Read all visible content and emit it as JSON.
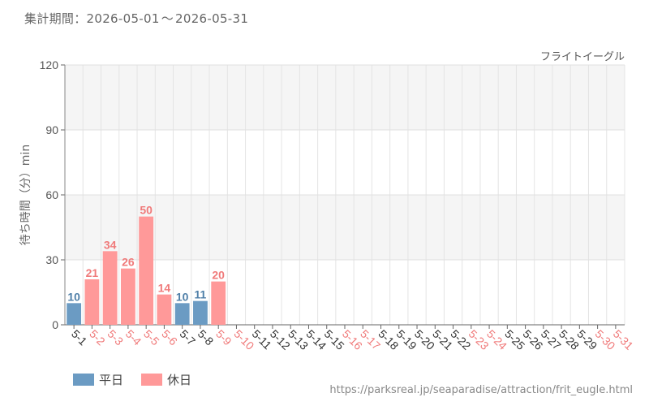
{
  "header": {
    "period_label": "集計期間",
    "separator": "：",
    "start_date": "2026-05-01",
    "range_mark": "〜",
    "end_date": "2026-05-31"
  },
  "legend": {
    "weekday_label": "平日",
    "holiday_label": "休日",
    "weekday_color": "#6b9bc3",
    "holiday_color": "#ff9999"
  },
  "source_url": "https://parksreal.jp/seaparadise/attraction/frit_eugle.html",
  "colors": {
    "weekday_bar": "#6b9bc3",
    "holiday_bar": "#ff9999",
    "weekday_text": "#333333",
    "holiday_text": "#f07a7a",
    "weekday_value": "#4f7fa8",
    "holiday_value": "#f07a7a",
    "band_shade": "#f5f5f5"
  },
  "chart_data": {
    "type": "bar",
    "title": "フライトイーグル",
    "xlabel": "",
    "ylabel": "待ち時間（分）min",
    "ylim": [
      0,
      120
    ],
    "yticks": [
      0,
      30,
      60,
      90,
      120
    ],
    "grid": true,
    "legend_position": "bottom-left",
    "categories": [
      "5-1",
      "5-2",
      "5-3",
      "5-4",
      "5-5",
      "5-6",
      "5-7",
      "5-8",
      "5-9",
      "5-10",
      "5-11",
      "5-12",
      "5-13",
      "5-14",
      "5-15",
      "5-16",
      "5-17",
      "5-18",
      "5-19",
      "5-20",
      "5-21",
      "5-22",
      "5-23",
      "5-24",
      "5-25",
      "5-26",
      "5-27",
      "5-28",
      "5-29",
      "5-30",
      "5-31"
    ],
    "day_type": [
      "weekday",
      "holiday",
      "holiday",
      "holiday",
      "holiday",
      "holiday",
      "weekday",
      "weekday",
      "holiday",
      "holiday",
      "weekday",
      "weekday",
      "weekday",
      "weekday",
      "weekday",
      "holiday",
      "holiday",
      "weekday",
      "weekday",
      "weekday",
      "weekday",
      "weekday",
      "holiday",
      "holiday",
      "weekday",
      "weekday",
      "weekday",
      "weekday",
      "weekday",
      "holiday",
      "holiday"
    ],
    "series": [
      {
        "name": "",
        "values": [
          10,
          21,
          34,
          26,
          50,
          14,
          10,
          11,
          20,
          null,
          null,
          null,
          null,
          null,
          null,
          null,
          null,
          null,
          null,
          null,
          null,
          null,
          null,
          null,
          null,
          null,
          null,
          null,
          null,
          null,
          null
        ]
      }
    ]
  }
}
